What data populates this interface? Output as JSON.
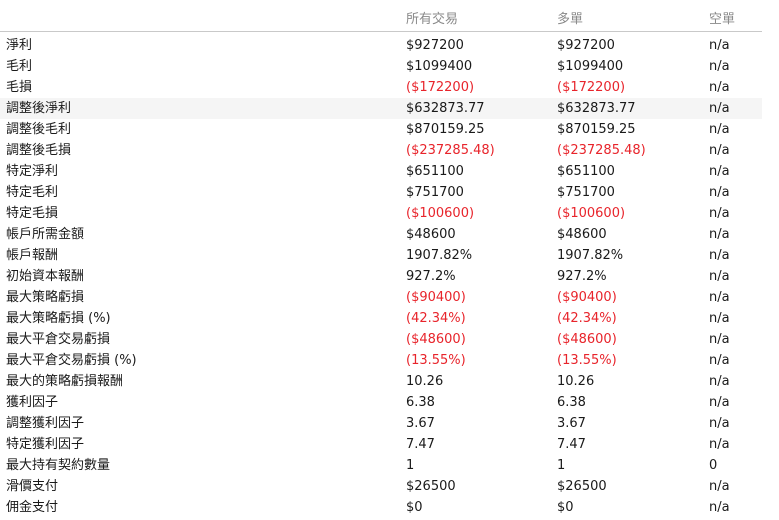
{
  "header": {
    "all_trades": "所有交易",
    "long": "多單",
    "short": "空單"
  },
  "rows": [
    {
      "label": "淨利",
      "all": "$927200",
      "long": "$927200",
      "short": "n/a",
      "negative": false
    },
    {
      "label": "毛利",
      "all": "$1099400",
      "long": "$1099400",
      "short": "n/a",
      "negative": false
    },
    {
      "label": "毛損",
      "all": "($172200)",
      "long": "($172200)",
      "short": "n/a",
      "negative": true
    },
    {
      "label": "調整後淨利",
      "all": "$632873.77",
      "long": "$632873.77",
      "short": "n/a",
      "negative": false
    },
    {
      "label": "調整後毛利",
      "all": "$870159.25",
      "long": "$870159.25",
      "short": "n/a",
      "negative": false
    },
    {
      "label": "調整後毛損",
      "all": "($237285.48)",
      "long": "($237285.48)",
      "short": "n/a",
      "negative": true
    },
    {
      "label": "特定淨利",
      "all": "$651100",
      "long": "$651100",
      "short": "n/a",
      "negative": false
    },
    {
      "label": "特定毛利",
      "all": "$751700",
      "long": "$751700",
      "short": "n/a",
      "negative": false
    },
    {
      "label": "特定毛損",
      "all": "($100600)",
      "long": "($100600)",
      "short": "n/a",
      "negative": true
    },
    {
      "label": "帳戶所需金額",
      "all": "$48600",
      "long": "$48600",
      "short": "n/a",
      "negative": false
    },
    {
      "label": "帳戶報酬",
      "all": "1907.82%",
      "long": "1907.82%",
      "short": "n/a",
      "negative": false
    },
    {
      "label": "初始資本報酬",
      "all": "927.2%",
      "long": "927.2%",
      "short": "n/a",
      "negative": false
    },
    {
      "label": "最大策略虧損",
      "all": "($90400)",
      "long": "($90400)",
      "short": "n/a",
      "negative": true
    },
    {
      "label": "最大策略虧損 (%)",
      "all": "(42.34%)",
      "long": "(42.34%)",
      "short": "n/a",
      "negative": true
    },
    {
      "label": "最大平倉交易虧損",
      "all": "($48600)",
      "long": "($48600)",
      "short": "n/a",
      "negative": true
    },
    {
      "label": "最大平倉交易虧損 (%)",
      "all": "(13.55%)",
      "long": "(13.55%)",
      "short": "n/a",
      "negative": true
    },
    {
      "label": "最大的策略虧損報酬",
      "all": "10.26",
      "long": "10.26",
      "short": "n/a",
      "negative": false
    },
    {
      "label": "獲利因子",
      "all": "6.38",
      "long": "6.38",
      "short": "n/a",
      "negative": false
    },
    {
      "label": "調整獲利因子",
      "all": "3.67",
      "long": "3.67",
      "short": "n/a",
      "negative": false
    },
    {
      "label": "特定獲利因子",
      "all": "7.47",
      "long": "7.47",
      "short": "n/a",
      "negative": false
    },
    {
      "label": "最大持有契約數量",
      "all": "1",
      "long": "1",
      "short": "0",
      "negative": false
    },
    {
      "label": "滑價支付",
      "all": "$26500",
      "long": "$26500",
      "short": "n/a",
      "negative": false
    },
    {
      "label": "佣金支付",
      "all": "$0",
      "long": "$0",
      "short": "n/a",
      "negative": false
    }
  ],
  "highlighted_row": 3,
  "colors": {
    "negative": "#e8242b",
    "header_text": "#8a8a8a",
    "highlight_bg": "#f5f5f5"
  }
}
